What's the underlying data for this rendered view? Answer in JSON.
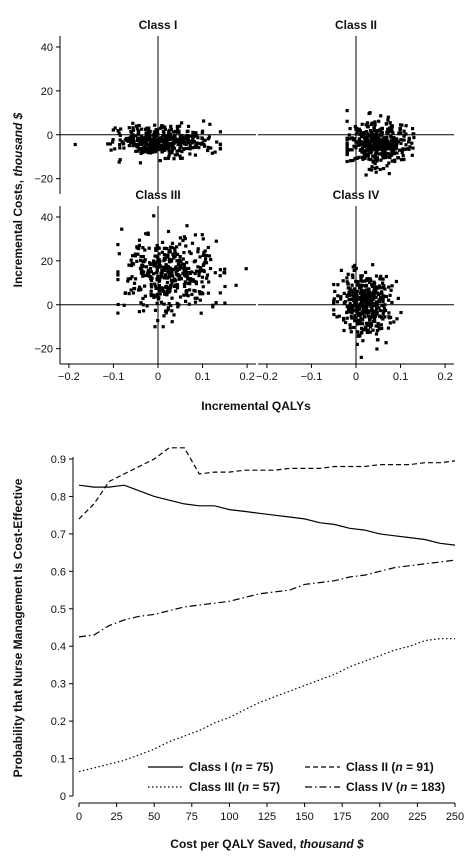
{
  "chart_data": [
    {
      "type": "scatter",
      "ylabel_main": "Incremental Costs, ",
      "ylabel_italic": "thousand $",
      "xlabel": "Incremental QALYs",
      "xlim": [
        -0.22,
        0.22
      ],
      "ylim": [
        -27,
        45
      ],
      "x_ticks": [
        -0.2,
        -0.1,
        0,
        0.1,
        0.2
      ],
      "x_tick_labels": [
        "−0.2",
        "−0.1",
        "0",
        "0.1",
        "0.2"
      ],
      "y_ticks": [
        -20,
        0,
        20,
        40
      ],
      "y_tick_labels": [
        "−20",
        "0",
        "20",
        "40"
      ],
      "panels": [
        {
          "title": "Class I",
          "cloud": {
            "n": 420,
            "mean_x": 0.01,
            "sd_x": 0.05,
            "mean_y": -3,
            "sd_y": 3.5,
            "min_x": -0.19,
            "max_x": 0.14,
            "min_y": -16,
            "max_y": 9
          }
        },
        {
          "title": "Class II",
          "cloud": {
            "n": 420,
            "mean_x": 0.05,
            "sd_x": 0.035,
            "mean_y": -4,
            "sd_y": 5,
            "min_x": -0.02,
            "max_x": 0.18,
            "min_y": -21,
            "max_y": 11
          }
        },
        {
          "title": "Class III",
          "cloud": {
            "n": 420,
            "mean_x": 0.03,
            "sd_x": 0.05,
            "mean_y": 14,
            "sd_y": 9,
            "min_x": -0.09,
            "max_x": 0.21,
            "min_y": -10,
            "max_y": 44
          }
        },
        {
          "title": "Class IV",
          "cloud": {
            "n": 420,
            "mean_x": 0.02,
            "sd_x": 0.03,
            "mean_y": 1,
            "sd_y": 7,
            "min_x": -0.05,
            "max_x": 0.13,
            "min_y": -24,
            "max_y": 25
          }
        }
      ]
    },
    {
      "type": "line",
      "ylabel": "Probability that Nurse Management Is Cost-Effective",
      "xlabel_main": "Cost per QALY Saved, ",
      "xlabel_italic": "thousand $",
      "xlim": [
        0,
        250
      ],
      "ylim": [
        0,
        0.9
      ],
      "x_ticks": [
        0,
        25,
        50,
        75,
        100,
        125,
        150,
        175,
        200,
        225,
        250
      ],
      "y_ticks": [
        0,
        0.1,
        0.2,
        0.3,
        0.4,
        0.5,
        0.6,
        0.7,
        0.8,
        0.9
      ],
      "y_tick_labels": [
        "0",
        "0.1",
        "0.2",
        "0.3",
        "0.4",
        "0.5",
        "0.6",
        "0.7",
        "0.8",
        "0.9"
      ],
      "x": [
        0,
        10,
        20,
        30,
        40,
        50,
        60,
        70,
        80,
        90,
        100,
        110,
        120,
        130,
        140,
        150,
        160,
        170,
        180,
        190,
        200,
        210,
        220,
        230,
        240,
        250
      ],
      "series": [
        {
          "name": "Class I",
          "n": "75",
          "style": "solid",
          "values": [
            0.83,
            0.825,
            0.825,
            0.83,
            0.815,
            0.8,
            0.79,
            0.78,
            0.775,
            0.775,
            0.765,
            0.76,
            0.755,
            0.75,
            0.745,
            0.74,
            0.73,
            0.725,
            0.715,
            0.71,
            0.7,
            0.695,
            0.69,
            0.685,
            0.675,
            0.67
          ]
        },
        {
          "name": "Class II",
          "n": "91",
          "style": "dash",
          "values": [
            0.74,
            0.78,
            0.84,
            0.86,
            0.88,
            0.9,
            0.93,
            0.93,
            0.86,
            0.865,
            0.865,
            0.87,
            0.87,
            0.87,
            0.875,
            0.875,
            0.875,
            0.88,
            0.88,
            0.88,
            0.885,
            0.885,
            0.885,
            0.89,
            0.89,
            0.895
          ]
        },
        {
          "name": "Class III",
          "n": "57",
          "style": "dot",
          "values": [
            0.065,
            0.075,
            0.085,
            0.095,
            0.11,
            0.125,
            0.145,
            0.16,
            0.175,
            0.195,
            0.21,
            0.23,
            0.25,
            0.265,
            0.28,
            0.295,
            0.31,
            0.325,
            0.345,
            0.36,
            0.375,
            0.39,
            0.4,
            0.415,
            0.42,
            0.42
          ]
        },
        {
          "name": "Class IV",
          "n": "183",
          "style": "dashdot",
          "values": [
            0.425,
            0.43,
            0.455,
            0.47,
            0.48,
            0.485,
            0.495,
            0.505,
            0.51,
            0.515,
            0.52,
            0.53,
            0.54,
            0.545,
            0.55,
            0.565,
            0.57,
            0.575,
            0.585,
            0.59,
            0.6,
            0.61,
            0.615,
            0.62,
            0.625,
            0.63
          ]
        }
      ],
      "legend_position": "bottom-right",
      "grid": false
    }
  ]
}
